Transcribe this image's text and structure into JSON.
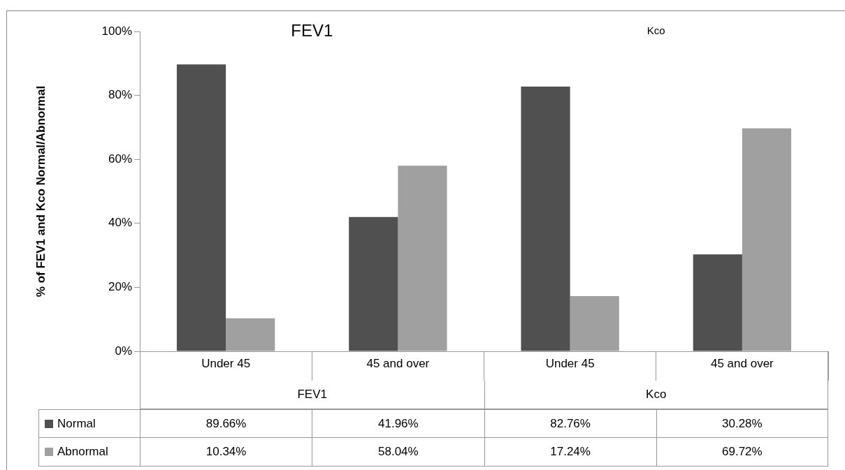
{
  "chart_data": {
    "type": "bar",
    "ylabel": "% of FEV1 and Kco Normal/Abnormal",
    "categories": [
      "Under 45",
      "45 and over",
      "Under 45",
      "45 and over"
    ],
    "series": [
      {
        "name": "Normal",
        "color": "#505050",
        "values": [
          89.66,
          41.96,
          82.76,
          30.28
        ],
        "value_labels": [
          "89.66%",
          "41.96%",
          "82.76%",
          "30.28%"
        ]
      },
      {
        "name": "Abnormal",
        "color": "#a0a0a0",
        "values": [
          10.34,
          58.04,
          17.24,
          69.72
        ],
        "value_labels": [
          "10.34%",
          "58.04%",
          "17.24%",
          "69.72%"
        ]
      }
    ],
    "ylim": [
      0,
      100
    ],
    "yticks": [
      {
        "value": 0,
        "label": "0%"
      },
      {
        "value": 20,
        "label": "20%"
      },
      {
        "value": 40,
        "label": "40%"
      },
      {
        "value": 60,
        "label": "60%"
      },
      {
        "value": 80,
        "label": "80%"
      },
      {
        "value": 100,
        "label": "100%"
      }
    ],
    "annotations": [
      "FEV1",
      "Kco",
      "FEV1",
      "Kco"
    ],
    "legend": "bottom left"
  }
}
